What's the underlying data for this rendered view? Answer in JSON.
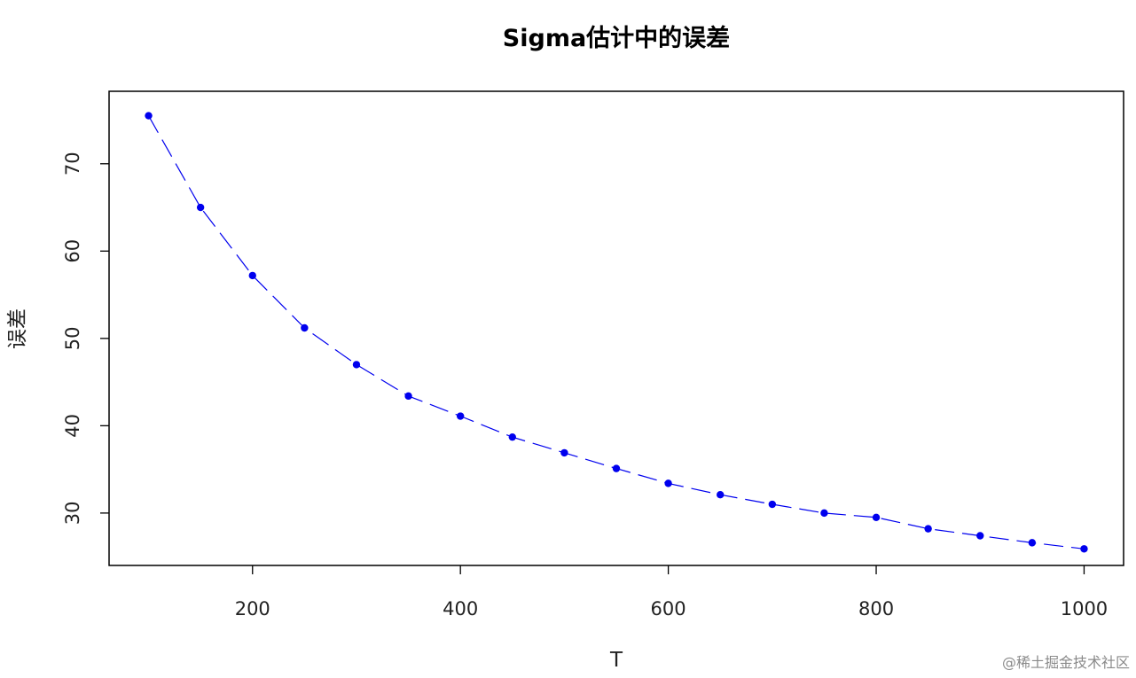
{
  "chart_data": {
    "type": "line",
    "title": "Sigma估计中的误差",
    "xlabel": "T",
    "ylabel": "误差",
    "xlim": [
      62,
      1038
    ],
    "ylim": [
      24.0,
      78.3
    ],
    "x_ticks": [
      200,
      400,
      600,
      800,
      1000
    ],
    "y_ticks": [
      30,
      40,
      50,
      60,
      70
    ],
    "grid": false,
    "legend": "none",
    "series": [
      {
        "color": "#0000ee",
        "line_style": "dashed",
        "marker": "filled-circle",
        "x": [
          100,
          150,
          200,
          250,
          300,
          350,
          400,
          450,
          500,
          550,
          600,
          650,
          700,
          750,
          800,
          850,
          900,
          950,
          1000
        ],
        "y": [
          75.5,
          65.0,
          57.2,
          51.2,
          47.0,
          43.4,
          41.1,
          38.7,
          36.9,
          35.1,
          33.4,
          32.1,
          31.0,
          30.0,
          29.5,
          28.2,
          27.4,
          26.6,
          25.9
        ]
      }
    ]
  },
  "watermark": "@稀土掘金技术社区"
}
